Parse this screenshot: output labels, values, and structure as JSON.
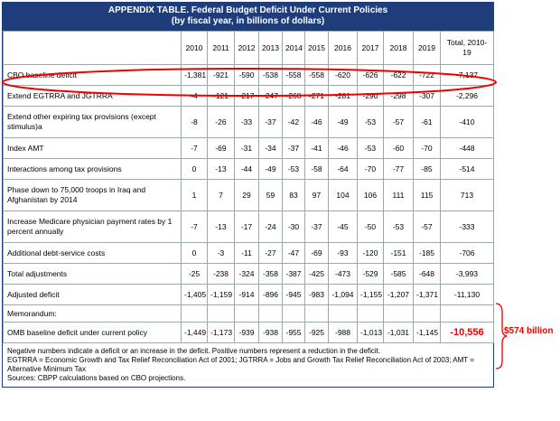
{
  "header": {
    "title": "APPENDIX TABLE. Federal Budget Deficit Under Current Policies",
    "subtitle": "(by fiscal year, in billions of dollars)"
  },
  "table": {
    "columns": [
      "2010",
      "2011",
      "2012",
      "2013",
      "2014",
      "2015",
      "2016",
      "2017",
      "2018",
      "2019",
      "Total, 2010-19"
    ],
    "rows": [
      {
        "label": "CBO baseline deficit",
        "values": [
          "-1,381",
          "-921",
          "-590",
          "-538",
          "-558",
          "-558",
          "-620",
          "-626",
          "-622",
          "-722",
          "-7,137"
        ]
      },
      {
        "label": "Extend EGTRRA and JGTRRA",
        "values": [
          "-4",
          "-121",
          "-217",
          "-247",
          "-260",
          "-271",
          "-281",
          "-290",
          "-298",
          "-307",
          "-2,296"
        ]
      },
      {
        "label": "Extend other expiring tax provisions (except stimulus)a",
        "values": [
          "-8",
          "-26",
          "-33",
          "-37",
          "-42",
          "-46",
          "-49",
          "-53",
          "-57",
          "-61",
          "-410"
        ]
      },
      {
        "label": "Index AMT",
        "values": [
          "-7",
          "-69",
          "-31",
          "-34",
          "-37",
          "-41",
          "-46",
          "-53",
          "-60",
          "-70",
          "-448"
        ]
      },
      {
        "label": "Interactions among tax provisions",
        "values": [
          "0",
          "-13",
          "-44",
          "-49",
          "-53",
          "-58",
          "-64",
          "-70",
          "-77",
          "-85",
          "-514"
        ]
      },
      {
        "label": "Phase down to 75,000 troops in Iraq and Afghanistan by 2014",
        "values": [
          "1",
          "7",
          "29",
          "59",
          "83",
          "97",
          "104",
          "106",
          "111",
          "115",
          "713"
        ]
      },
      {
        "label": "Increase Medicare physician payment rates by 1 percent annually",
        "values": [
          "-7",
          "-13",
          "-17",
          "-24",
          "-30",
          "-37",
          "-45",
          "-50",
          "-53",
          "-57",
          "-333"
        ]
      },
      {
        "label": "Additional debt-service costs",
        "values": [
          "0",
          "-3",
          "-11",
          "-27",
          "-47",
          "-69",
          "-93",
          "-120",
          "-151",
          "-185",
          "-706"
        ]
      },
      {
        "label": "Total adjustments",
        "values": [
          "-25",
          "-238",
          "-324",
          "-358",
          "-387",
          "-425",
          "-473",
          "-529",
          "-585",
          "-648",
          "-3,993"
        ]
      },
      {
        "label": "Adjusted deficit",
        "values": [
          "-1,405",
          "-1,159",
          "-914",
          "-896",
          "-945",
          "-983",
          "-1,094",
          "-1,155",
          "-1,207",
          "-1,371",
          "-11,130"
        ]
      },
      {
        "label": "Memorandum:",
        "values": []
      },
      {
        "label": "OMB baseline deficit under current policy",
        "values": [
          "-1,449",
          "-1,173",
          "-939",
          "-938",
          "-955",
          "-925",
          "-988",
          "-1,013",
          "-1,031",
          "-1,145",
          "-10,556"
        ]
      }
    ]
  },
  "annotation": "$574 billion",
  "notes": [
    "Negative numbers indicate a deficit or an increase in the deficit. Positive numbers represent a reduction in the deficit.",
    "EGTRRA = Economic Growth and Tax Relief Reconciliation Act of 2001; JGTRRA = Jobs and Growth Tax Relief Reconciliation Act of 2003; AMT = Alternative Minimum Tax",
    "Sources: CBPP calculations based on CBO projections."
  ]
}
